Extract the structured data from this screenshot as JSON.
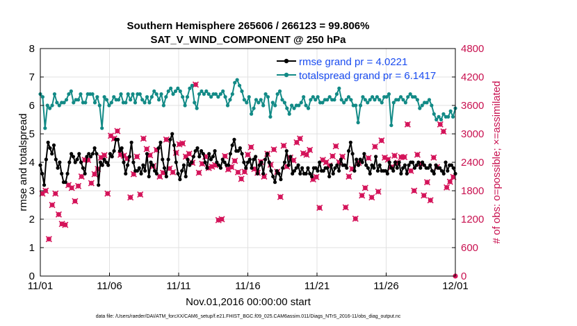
{
  "chart_data": {
    "type": "line",
    "title": "Southern Hemisphere 265606 / 266123 = 99.806%",
    "subtitle": "SAT_V_WIND_COMPONENT @ 250 hPa",
    "xlabel": "Nov.01,2016 00:00:00 start",
    "ylabel": "rmse and totalspread",
    "ylabel_right": "# of obs: o=possible; ×=assimilated",
    "x_ticks": [
      "11/01",
      "11/06",
      "11/11",
      "11/16",
      "11/21",
      "11/26",
      "12/01"
    ],
    "x_range_days": [
      0,
      30
    ],
    "ylim": [
      0,
      8
    ],
    "y_ticks": [
      "0",
      "1",
      "2",
      "3",
      "4",
      "5",
      "6",
      "7",
      "8"
    ],
    "ylim_right": [
      0,
      4800
    ],
    "y_ticks_right": [
      "0",
      "600",
      "1200",
      "1800",
      "2400",
      "3000",
      "3600",
      "4200",
      "4800"
    ],
    "grid": true,
    "legend_position": "top-right",
    "colors": {
      "rmse": "#000000",
      "totalspread": "#128a86",
      "obs": "#d4145a",
      "legend_text": "#1a4cf0",
      "right_axis": "#c8104f"
    },
    "series": [
      {
        "name": "rmse grand pr = 4.0221",
        "values": [
          3.9,
          3.6,
          3.2,
          4.1,
          4.7,
          4.5,
          4.3,
          4.6,
          4.1,
          3.8,
          4.0,
          3.6,
          3.3,
          3.3,
          3.6,
          4.0,
          4.3,
          4.2,
          4.0,
          4.1,
          4.3,
          4.0,
          3.8,
          3.6,
          4.2,
          4.3,
          4.2,
          4.3,
          4.5,
          4.3,
          3.2,
          4.0,
          3.9,
          4.1,
          4.0,
          3.9,
          4.3,
          4.2,
          4.4,
          4.8,
          4.8,
          4.4,
          4.5,
          4.0,
          3.6,
          3.9,
          4.2,
          4.7,
          4.0,
          3.7,
          3.7,
          3.8,
          3.6,
          3.9,
          3.7,
          4.3,
          3.5,
          4.0,
          3.9,
          3.7,
          3.6,
          4.5,
          4.7,
          4.1,
          3.8,
          3.5,
          4.1,
          4.8,
          5.0,
          4.6,
          4.0,
          3.6,
          3.4,
          3.7,
          3.9,
          3.5,
          4.1,
          3.9,
          4.0,
          4.2,
          4.4,
          4.5,
          4.2,
          4.4,
          4.3,
          4.0,
          3.8,
          4.3,
          4.1,
          4.2,
          4.4,
          4.0,
          3.9,
          3.8,
          4.1,
          4.0,
          3.9,
          3.9,
          4.3,
          4.6,
          4.8,
          4.4,
          4.4,
          4.5,
          4.3,
          4.0,
          3.8,
          4.0,
          4.1,
          3.8,
          4.1,
          4.2,
          3.6,
          3.9,
          4.0,
          3.6,
          4.1,
          4.3,
          4.0,
          3.7,
          3.5,
          3.3,
          3.7,
          3.6,
          3.4,
          3.8,
          4.0,
          4.4,
          3.9,
          4.2,
          3.6,
          3.7,
          3.8,
          3.9,
          3.6,
          3.8,
          3.6,
          3.6,
          3.8,
          3.6,
          3.5,
          3.8,
          3.8,
          3.7,
          4.0,
          3.7,
          3.7,
          3.8,
          3.8,
          3.5,
          3.9,
          3.6,
          3.8,
          3.9,
          3.7,
          4.1,
          3.9,
          3.9,
          3.8,
          4.4,
          4.7,
          4.3,
          3.7,
          4.1,
          3.9,
          4.1,
          4.0,
          4.3,
          3.9,
          3.8,
          3.6,
          3.9,
          3.8,
          4.2,
          3.7,
          3.9,
          3.7,
          3.7,
          3.7,
          3.6,
          4.0,
          3.8,
          3.7,
          4.0,
          3.8,
          4.0,
          3.6,
          3.8,
          3.9,
          3.6,
          3.9,
          4.0,
          4.0,
          3.8,
          3.9,
          4.0,
          3.8,
          4.0,
          3.9,
          3.8,
          3.8,
          3.9,
          3.7,
          3.6,
          3.9,
          3.8,
          3.8,
          3.7,
          3.6,
          4.0,
          3.7,
          3.9,
          3.9,
          3.8,
          3.6
        ]
      },
      {
        "name": "totalspread grand pr = 6.1417",
        "values": [
          6.4,
          6.3,
          5.2,
          6.0,
          5.9,
          6.0,
          6.4,
          6.1,
          6.0,
          6.1,
          6.1,
          6.2,
          6.4,
          6.5,
          6.1,
          6.2,
          6.2,
          6.4,
          6.1,
          6.1,
          6.4,
          6.4,
          6.4,
          6.1,
          6.3,
          6.0,
          5.2,
          6.3,
          6.2,
          6.0,
          6.1,
          6.3,
          6.2,
          6.2,
          6.4,
          6.1,
          6.1,
          6.4,
          6.2,
          6.4,
          6.1,
          6.4,
          6.4,
          6.2,
          6.1,
          6.3,
          6.1,
          6.3,
          6.5,
          6.4,
          6.2,
          6.4,
          6.0,
          6.3,
          6.5,
          6.6,
          6.4,
          6.5,
          6.6,
          6.5,
          6.3,
          6.0,
          6.3,
          6.6,
          6.7,
          6.1,
          5.9,
          6.4,
          6.5,
          6.4,
          6.5,
          6.4,
          6.3,
          6.4,
          6.4,
          6.3,
          6.4,
          6.5,
          6.3,
          6.0,
          6.2,
          6.4,
          6.8,
          6.9,
          6.7,
          6.5,
          6.2,
          6.1,
          6.3,
          5.7,
          5.9,
          6.2,
          6.1,
          6.2,
          6.0,
          6.4,
          6.3,
          5.6,
          6.1,
          6.0,
          6.4,
          6.5,
          6.2,
          6.1,
          5.9,
          5.7,
          6.0,
          5.9,
          6.0,
          6.0,
          6.1,
          6.3,
          6.0,
          5.9,
          6.2,
          6.3,
          6.2,
          6.3,
          6.1,
          6.1,
          6.2,
          6.2,
          6.3,
          6.2,
          6.2,
          6.4,
          6.6,
          6.2,
          6.1,
          6.2,
          6.3,
          6.2,
          6.0,
          6.0,
          5.4,
          6.0,
          6.3,
          6.2,
          6.1,
          6.2,
          6.3,
          6.2,
          6.3,
          6.2,
          6.1,
          6.3,
          6.3,
          6.4,
          5.3,
          6.1,
          6.2,
          6.2,
          6.3,
          6.2,
          6.1,
          6.3,
          6.4,
          6.3,
          6.3,
          6.2,
          5.9,
          6.0,
          6.1,
          6.1,
          6.2,
          6.0,
          5.7,
          5.5,
          5.6,
          5.5,
          5.7,
          5.6,
          5.6,
          5.8,
          5.6,
          5.9
        ],
        "x_end": 30
      }
    ],
    "obs_counts": [
      1740,
      1800,
      780,
      1500,
      1740,
      1300,
      1100,
      1080,
      1920,
      1860,
      1580,
      1900,
      2100,
      2450,
      2450,
      1960,
      2150,
      2260,
      2500,
      2550,
      1740,
      2960,
      2900,
      3060,
      2560,
      2540,
      2480,
      1660,
      2150,
      2520,
      1720,
      2900,
      2680,
      2550,
      2320,
      2660,
      2100,
      2180,
      2880,
      2270,
      2190,
      2600,
      2780,
      2800,
      2520,
      2580,
      2390,
      4040,
      2180,
      2370,
      2520,
      2280,
      2310,
      2340,
      1180,
      1200,
      2530,
      2250,
      2300,
      2430,
      2190,
      2050,
      2200,
      2560,
      2720,
      2260,
      2180,
      2410,
      2100,
      2580,
      2350,
      2670,
      2200,
      1670,
      2750,
      2310,
      2500,
      2440,
      2820,
      2900,
      2590,
      2560,
      2660,
      2040,
      2090,
      1440,
      2450,
      2400,
      2330,
      2530,
      2740,
      2400,
      2520,
      1450,
      2100,
      2260,
      1210,
      2390,
      1700,
      1860,
      2490,
      1660,
      2730,
      1780,
      2860,
      2500,
      2460,
      2300,
      2540,
      2390,
      2510,
      2510,
      3200,
      2220,
      1800,
      2560,
      2370,
      1700,
      1980,
      1600,
      2500,
      2300,
      3200,
      3050,
      1870,
      1990,
      2090
    ]
  },
  "footnote": "data file: /Users/raeder/DAI/ATM_forcXX/CAM6_setup/f.e21.FHIST_BGC.f09_025.CAM6assim.011/Diags_NTrS_2016-11/obs_diag_output.nc"
}
